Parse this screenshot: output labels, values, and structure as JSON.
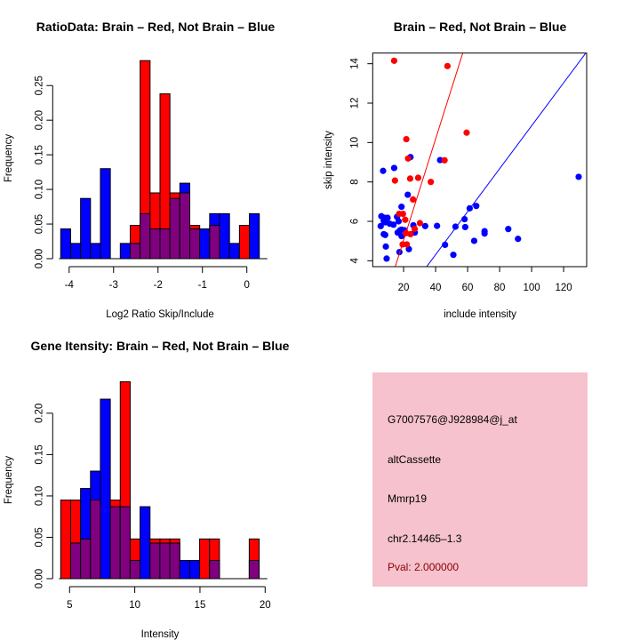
{
  "colors": {
    "red": "#ff0000",
    "blue": "#0000ff",
    "overlap": "#800080",
    "info_bg": "#f5c2cd",
    "pval": "#8b0000"
  },
  "chart_data": [
    {
      "type": "bar",
      "id": "ratio",
      "title": "RatioData: Brain – Red, Not Brain – Blue",
      "xlabel": "Log2 Ratio Skip/Include",
      "ylabel": "Frequency",
      "bin_start": -4.19,
      "bin_width": 0.2235,
      "xlim": [
        -4.19,
        0.28
      ],
      "ylim": [
        0,
        0.286
      ],
      "xticks": [
        -4,
        -3,
        -2,
        -1,
        0
      ],
      "yticks": [
        "0.00",
        "0.05",
        "0.10",
        "0.15",
        "0.20",
        "0.25"
      ],
      "series": [
        {
          "name": "Brain",
          "color": "red",
          "values": [
            0,
            0,
            0,
            0,
            0,
            0,
            0,
            0.048,
            0.286,
            0.095,
            0.238,
            0.095,
            0.095,
            0.048,
            0,
            0.048,
            0,
            0,
            0.048,
            0
          ]
        },
        {
          "name": "Not Brain",
          "color": "blue",
          "values": [
            0.043,
            0.022,
            0.087,
            0.022,
            0.13,
            0,
            0.022,
            0.022,
            0.065,
            0.043,
            0.043,
            0.087,
            0.109,
            0.043,
            0.043,
            0.065,
            0.065,
            0.022,
            0,
            0.065
          ]
        }
      ]
    },
    {
      "type": "scatter",
      "id": "scatter",
      "title": "Brain – Red, Not Brain – Blue",
      "xlabel": "include intensity",
      "ylabel": "skip intensity",
      "xlim": [
        0.7,
        134.4
      ],
      "ylim": [
        3.7,
        14.54
      ],
      "xticks": [
        20,
        40,
        60,
        80,
        100,
        120
      ],
      "yticks": [
        4,
        6,
        8,
        10,
        12,
        14
      ],
      "series": [
        {
          "name": "Brain",
          "color": "red",
          "fit": {
            "slope": 0.257,
            "intercept": -0.1
          },
          "points": [
            [
              14.1,
              14.15
            ],
            [
              47.4,
              13.88
            ],
            [
              59.4,
              10.5
            ],
            [
              21.7,
              10.17
            ],
            [
              22.8,
              9.19
            ],
            [
              45.6,
              9.1
            ],
            [
              14.6,
              8.07
            ],
            [
              24.1,
              8.17
            ],
            [
              29.1,
              8.21
            ],
            [
              37,
              8.0
            ],
            [
              25.9,
              7.11
            ],
            [
              17.2,
              6.38
            ],
            [
              19.6,
              6.38
            ],
            [
              21,
              6.08
            ],
            [
              30.2,
              5.91
            ],
            [
              26.9,
              5.62
            ],
            [
              24.3,
              5.35
            ],
            [
              21.5,
              5.4
            ],
            [
              19.4,
              4.83
            ],
            [
              22,
              4.83
            ]
          ]
        },
        {
          "name": "Not Brain",
          "color": "blue",
          "fit": {
            "slope": 0.109,
            "intercept": -0.05
          },
          "points": [
            [
              7.2,
              8.56
            ],
            [
              14.1,
              8.71
            ],
            [
              24.3,
              9.26
            ],
            [
              42.8,
              9.11
            ],
            [
              22.6,
              7.35
            ],
            [
              18.7,
              6.74
            ],
            [
              6.1,
              6.26
            ],
            [
              8.1,
              6.18
            ],
            [
              10,
              6.18
            ],
            [
              11.3,
              5.88
            ],
            [
              13.7,
              5.83
            ],
            [
              5.7,
              5.76
            ],
            [
              7.6,
              6.03
            ],
            [
              8.5,
              5.95
            ],
            [
              15.9,
              6.23
            ],
            [
              16.9,
              6.0
            ],
            [
              18.7,
              5.58
            ],
            [
              17.8,
              5.55
            ],
            [
              20.6,
              5.55
            ],
            [
              16.3,
              5.43
            ],
            [
              18.7,
              5.25
            ],
            [
              7.6,
              5.35
            ],
            [
              8.5,
              5.31
            ],
            [
              8.9,
              4.72
            ],
            [
              17.4,
              4.44
            ],
            [
              23.3,
              4.59
            ],
            [
              9.4,
              4.11
            ],
            [
              26.1,
              5.8
            ],
            [
              27,
              5.43
            ],
            [
              33.5,
              5.76
            ],
            [
              40.9,
              5.77
            ],
            [
              52.4,
              5.73
            ],
            [
              45.9,
              4.81
            ],
            [
              51.1,
              4.3
            ],
            [
              58.1,
              6.11
            ],
            [
              58.5,
              5.71
            ],
            [
              61.3,
              6.66
            ],
            [
              65.4,
              6.78
            ],
            [
              64.1,
              5.01
            ],
            [
              70.6,
              5.5
            ],
            [
              70.6,
              5.38
            ],
            [
              85.4,
              5.61
            ],
            [
              91.5,
              5.11
            ],
            [
              129.4,
              8.26
            ]
          ]
        }
      ]
    },
    {
      "type": "bar",
      "id": "gene",
      "title": "Gene Itensity: Brain – Red, Not Brain – Blue",
      "xlabel": "Intensity",
      "ylabel": "Frequency",
      "bin_start": 4.32,
      "bin_width": 0.761,
      "xlim": [
        4.32,
        19.55
      ],
      "ylim": [
        0,
        0.238
      ],
      "xticks": [
        5,
        10,
        15,
        20
      ],
      "yticks": [
        "0.00",
        "0.05",
        "0.10",
        "0.15",
        "0.20"
      ],
      "series": [
        {
          "name": "Brain",
          "color": "red",
          "values": [
            0.095,
            0.095,
            0.048,
            0.095,
            0,
            0.095,
            0.238,
            0.048,
            0,
            0.048,
            0.048,
            0.048,
            0,
            0,
            0.048,
            0.048,
            0,
            0,
            0,
            0.048
          ]
        },
        {
          "name": "Not Brain",
          "color": "blue",
          "values": [
            0,
            0.043,
            0.109,
            0.13,
            0.217,
            0.087,
            0.087,
            0.022,
            0.087,
            0.043,
            0.043,
            0.043,
            0.022,
            0.022,
            0,
            0.022,
            0,
            0,
            0,
            0.022
          ]
        }
      ]
    }
  ],
  "info": {
    "probe": "G7007576@J928984@j_at",
    "event_type": "altCassette",
    "gene": "Mmrp19",
    "location": "chr2.14465–1.3",
    "pval": "Pval: 2.000000"
  }
}
